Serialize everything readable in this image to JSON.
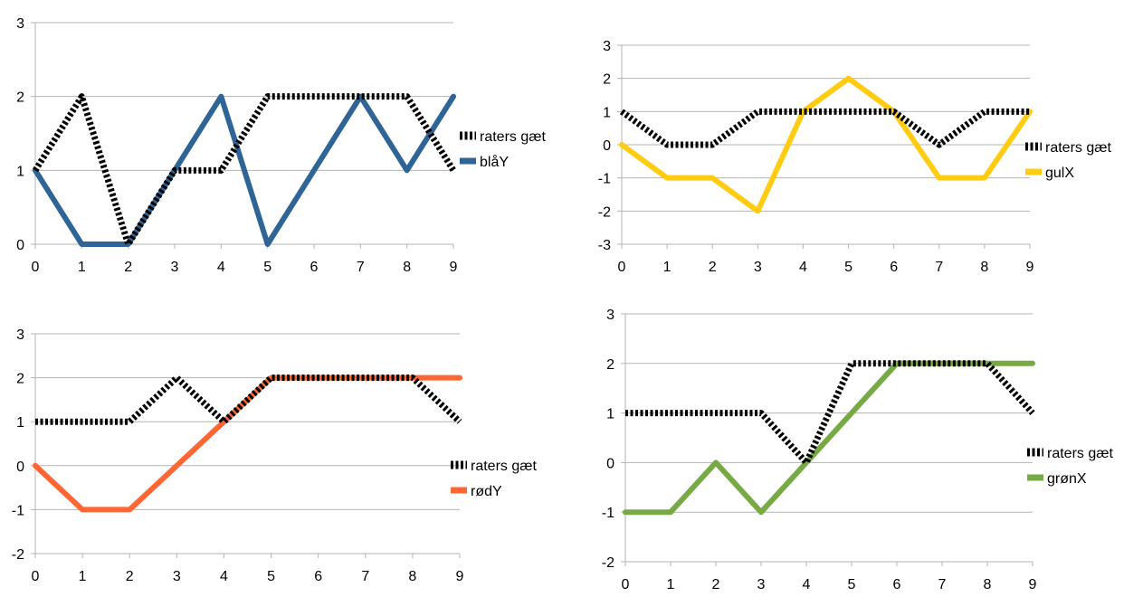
{
  "chart_data": [
    {
      "type": "line",
      "x": [
        0,
        1,
        2,
        3,
        4,
        5,
        6,
        7,
        8,
        9
      ],
      "ylim": [
        0,
        3
      ],
      "yticks": [
        0,
        1,
        2,
        3
      ],
      "series": [
        {
          "name": "raters gæt",
          "color": "#000000",
          "style": "dotted",
          "values": [
            1,
            2,
            0,
            1,
            1,
            2,
            2,
            2,
            2,
            1
          ]
        },
        {
          "name": "blåY",
          "color": "#2f6496",
          "style": "solid",
          "values": [
            1,
            0,
            0,
            1,
            2,
            0,
            1,
            2,
            1,
            2
          ]
        }
      ],
      "legend": "right",
      "grid": true
    },
    {
      "type": "line",
      "x": [
        0,
        1,
        2,
        3,
        4,
        5,
        6,
        7,
        8,
        9
      ],
      "ylim": [
        -3,
        3
      ],
      "yticks": [
        -3,
        -2,
        -1,
        0,
        1,
        2,
        3
      ],
      "series": [
        {
          "name": "raters gæt",
          "color": "#000000",
          "style": "dotted",
          "values": [
            1,
            0,
            0,
            1,
            1,
            1,
            1,
            0,
            1,
            1
          ]
        },
        {
          "name": "gulX",
          "color": "#ffcc11",
          "style": "solid",
          "values": [
            0,
            -1,
            -1,
            -2,
            1,
            2,
            1,
            -1,
            -1,
            1
          ]
        }
      ],
      "legend": "right",
      "grid": true
    },
    {
      "type": "line",
      "x": [
        0,
        1,
        2,
        3,
        4,
        5,
        6,
        7,
        8,
        9
      ],
      "ylim": [
        -2,
        3
      ],
      "yticks": [
        -2,
        -1,
        0,
        1,
        2,
        3
      ],
      "series": [
        {
          "name": "raters gæt",
          "color": "#000000",
          "style": "dotted",
          "values": [
            1,
            1,
            1,
            2,
            1,
            2,
            2,
            2,
            2,
            1
          ]
        },
        {
          "name": "rødY",
          "color": "#ff6633",
          "style": "solid",
          "values": [
            0,
            -1,
            -1,
            0,
            1,
            2,
            2,
            2,
            2,
            2
          ]
        }
      ],
      "legend": "right",
      "grid": true
    },
    {
      "type": "line",
      "x": [
        0,
        1,
        2,
        3,
        4,
        5,
        6,
        7,
        8,
        9
      ],
      "ylim": [
        -2,
        3
      ],
      "yticks": [
        -2,
        -1,
        0,
        1,
        2,
        3
      ],
      "series": [
        {
          "name": "raters gæt",
          "color": "#000000",
          "style": "dotted",
          "values": [
            1,
            1,
            1,
            1,
            0,
            2,
            2,
            2,
            2,
            1
          ]
        },
        {
          "name": "grønX",
          "color": "#77aa44",
          "style": "solid",
          "values": [
            -1,
            -1,
            0,
            -1,
            0,
            1,
            2,
            2,
            2,
            2
          ]
        }
      ],
      "legend": "right",
      "grid": true
    }
  ]
}
